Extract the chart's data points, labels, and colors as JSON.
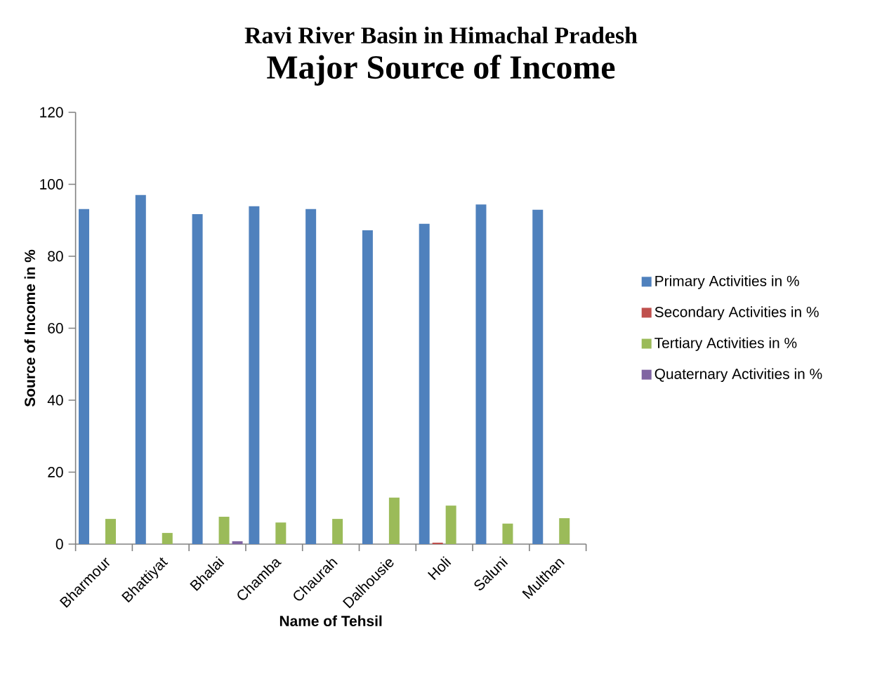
{
  "chart_data": {
    "type": "bar",
    "title": "Ravi River Basin in Himachal Pradesh",
    "subtitle": "Major Source of Income",
    "xlabel": "Name of Tehsil",
    "ylabel": "Source of Income in %",
    "categories": [
      "Bharmour",
      "Bhattiyat",
      "Bhalai",
      "Chamba",
      "Chaurah",
      "Dalhousie",
      "Holi",
      "Saluni",
      "Multhan"
    ],
    "series": [
      {
        "name": "Primary Activities in %",
        "color": "#4f81bd",
        "values": [
          93.1,
          97.0,
          91.7,
          93.9,
          93.1,
          87.2,
          89.0,
          94.4,
          92.9
        ]
      },
      {
        "name": "Secondary Activities in %",
        "color": "#c0504d",
        "values": [
          0,
          0,
          0,
          0,
          0,
          0,
          0.4,
          0,
          0
        ]
      },
      {
        "name": "Tertiary Activities in %",
        "color": "#9bbb59",
        "values": [
          7.0,
          3.1,
          7.6,
          6.0,
          7.0,
          12.9,
          10.7,
          5.7,
          7.2
        ]
      },
      {
        "name": "Quaternary Activities in %",
        "color": "#8064a2",
        "values": [
          0,
          0,
          0.8,
          0,
          0,
          0,
          0,
          0,
          0
        ]
      }
    ],
    "ylim": [
      0,
      120
    ],
    "yticks": [
      0,
      20,
      40,
      60,
      80,
      100,
      120
    ],
    "grid": false,
    "legend": "right"
  }
}
